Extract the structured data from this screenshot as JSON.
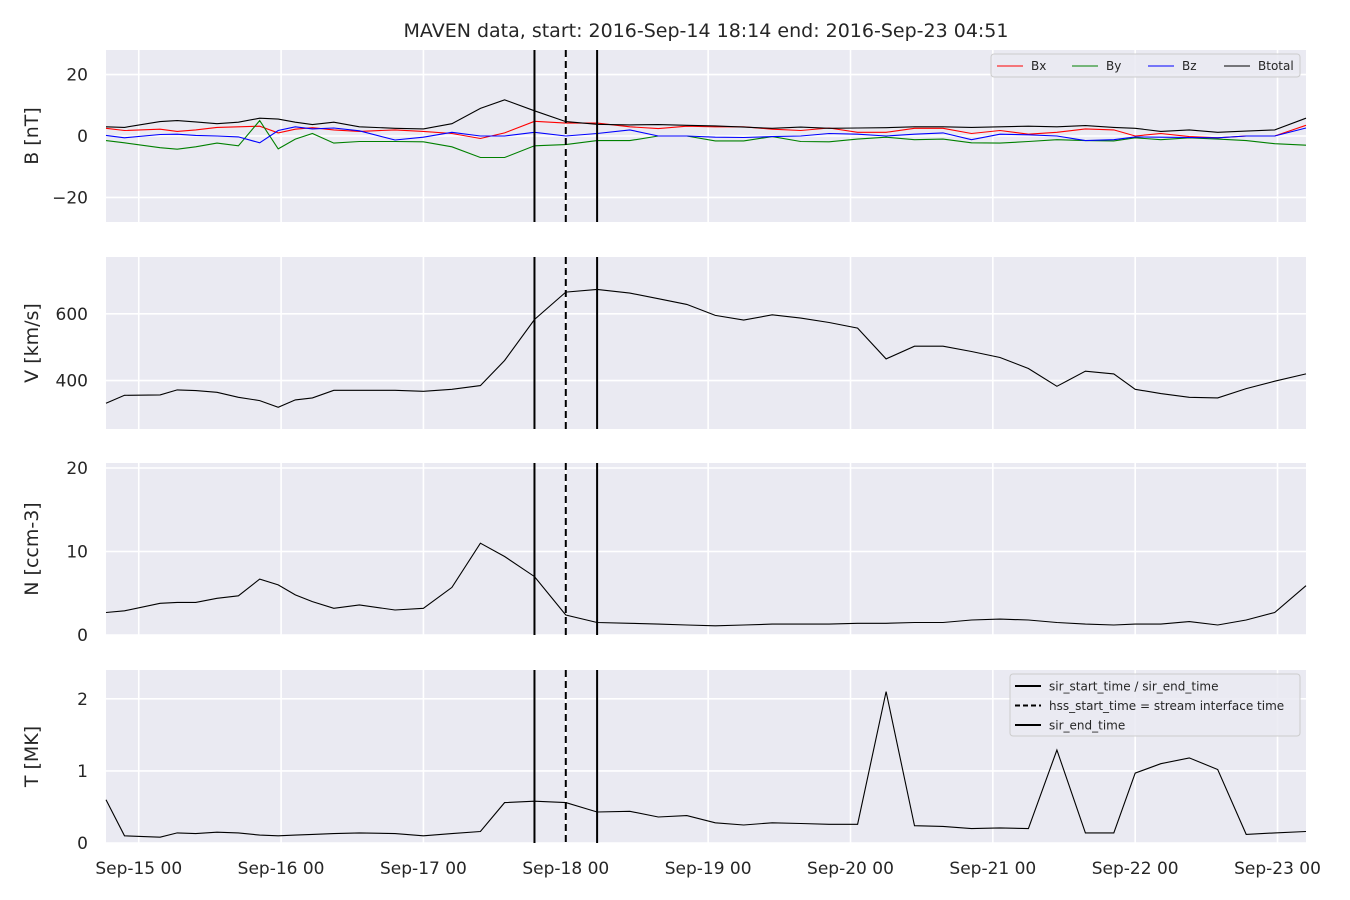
{
  "title": "MAVEN data, start: 2016-Sep-14 18:14  end: 2016-Sep-23 04:51",
  "colors": {
    "background": "#eaeaf2",
    "grid": "#ffffff",
    "Bx": "#ff0000",
    "By": "#008000",
    "Bz": "#0000ff",
    "Btotal": "#000000",
    "line": "#000000",
    "event": "#000000"
  },
  "chart_data": {
    "type": "line",
    "x_unit": "days since Sep-15 00:00",
    "x_range": [
      -0.23,
      8.2
    ],
    "x_ticks": [
      0,
      1,
      2,
      3,
      4,
      5,
      6,
      7,
      8
    ],
    "x_tick_labels": [
      "Sep-15 00",
      "Sep-16 00",
      "Sep-17 00",
      "Sep-18 00",
      "Sep-19 00",
      "Sep-20 00",
      "Sep-21 00",
      "Sep-22 00",
      "Sep-23 00"
    ],
    "event_lines": [
      {
        "x": 2.78,
        "style": "solid",
        "label": "sir_start_time / sir_end_time"
      },
      {
        "x": 3.0,
        "style": "dashed",
        "label": "hss_start_time = stream interface time"
      },
      {
        "x": 3.22,
        "style": "solid",
        "label": "sir_end_time"
      }
    ],
    "panels": [
      {
        "ylabel": "B [nT]",
        "ylim": [
          -28,
          28
        ],
        "yticks": [
          -20,
          0,
          20
        ],
        "ytick_labels": [
          "−20",
          "0",
          "20"
        ],
        "legend": "top-right",
        "series": [
          {
            "name": "Bx",
            "color_key": "Bx",
            "x": [
              -0.23,
              -0.1,
              0.15,
              0.27,
              0.4,
              0.55,
              0.7,
              0.85,
              0.98,
              1.1,
              1.22,
              1.37,
              1.55,
              1.8,
              2.0,
              2.2,
              2.4,
              2.57,
              2.78,
              3.0,
              3.22,
              3.45,
              3.65,
              3.85,
              4.05,
              4.25,
              4.45,
              4.65,
              4.85,
              5.05,
              5.25,
              5.45,
              5.65,
              5.85,
              6.05,
              6.25,
              6.45,
              6.65,
              6.85,
              7.0,
              7.18,
              7.38,
              7.58,
              7.78,
              7.98,
              8.2
            ],
            "values": [
              2.5,
              1.8,
              2.2,
              1.5,
              2.0,
              2.8,
              3.0,
              3.2,
              1.0,
              2.2,
              2.7,
              2.0,
              1.5,
              2.0,
              1.5,
              0.8,
              -0.8,
              1.0,
              4.8,
              4.2,
              4.2,
              3.0,
              2.4,
              3.2,
              3.0,
              3.0,
              2.2,
              1.8,
              2.6,
              1.2,
              1.2,
              2.5,
              2.5,
              0.8,
              1.8,
              0.6,
              1.2,
              2.3,
              2.0,
              0.0,
              0.8,
              -0.2,
              -0.6,
              0.0,
              0.0,
              3.5
            ]
          },
          {
            "name": "By",
            "color_key": "By",
            "x": [
              -0.23,
              -0.1,
              0.15,
              0.27,
              0.4,
              0.55,
              0.7,
              0.85,
              0.98,
              1.1,
              1.22,
              1.37,
              1.55,
              1.8,
              2.0,
              2.2,
              2.4,
              2.57,
              2.78,
              3.0,
              3.22,
              3.45,
              3.65,
              3.85,
              4.05,
              4.25,
              4.45,
              4.65,
              4.85,
              5.05,
              5.25,
              5.45,
              5.65,
              5.85,
              6.05,
              6.25,
              6.45,
              6.65,
              6.85,
              7.0,
              7.18,
              7.38,
              7.58,
              7.78,
              7.98,
              8.2
            ],
            "values": [
              -1.5,
              -2.2,
              -3.8,
              -4.3,
              -3.5,
              -2.3,
              -3.2,
              5.0,
              -4.2,
              -1.0,
              0.8,
              -2.3,
              -1.8,
              -1.8,
              -1.9,
              -3.5,
              -7.0,
              -7.0,
              -3.2,
              -2.8,
              -1.5,
              -1.5,
              0.0,
              0.0,
              -1.6,
              -1.6,
              -0.2,
              -1.8,
              -1.9,
              -1.0,
              -0.4,
              -1.2,
              -1.0,
              -2.2,
              -2.3,
              -1.8,
              -1.2,
              -1.5,
              -1.6,
              -0.6,
              -1.2,
              -0.6,
              -1.0,
              -1.5,
              -2.5,
              -3.0
            ]
          },
          {
            "name": "Bz",
            "color_key": "Bz",
            "x": [
              -0.23,
              -0.1,
              0.15,
              0.27,
              0.4,
              0.55,
              0.7,
              0.85,
              0.98,
              1.1,
              1.22,
              1.37,
              1.55,
              1.8,
              2.0,
              2.2,
              2.4,
              2.57,
              2.78,
              3.0,
              3.22,
              3.45,
              3.65,
              3.85,
              4.05,
              4.25,
              4.45,
              4.65,
              4.85,
              5.05,
              5.25,
              5.45,
              5.65,
              5.85,
              6.05,
              6.25,
              6.45,
              6.65,
              6.85,
              7.0,
              7.18,
              7.38,
              7.58,
              7.78,
              7.98,
              8.2
            ],
            "values": [
              0.2,
              -0.6,
              0.5,
              0.6,
              0.2,
              0.0,
              -0.3,
              -2.2,
              1.8,
              3.0,
              2.3,
              2.6,
              1.7,
              -1.3,
              -0.4,
              1.2,
              0.0,
              0.0,
              1.2,
              0.0,
              0.8,
              2.0,
              0.0,
              0.0,
              -0.4,
              -0.5,
              -0.2,
              0.0,
              0.8,
              0.6,
              0.0,
              0.6,
              1.0,
              -1.2,
              0.6,
              0.4,
              0.0,
              -1.5,
              -1.2,
              -0.3,
              -0.4,
              -0.5,
              -0.6,
              0.0,
              0.0,
              2.6
            ]
          },
          {
            "name": "Btotal",
            "color_key": "Btotal",
            "x": [
              -0.23,
              -0.1,
              0.15,
              0.27,
              0.4,
              0.55,
              0.7,
              0.85,
              0.98,
              1.1,
              1.22,
              1.37,
              1.55,
              1.8,
              2.0,
              2.2,
              2.4,
              2.57,
              2.78,
              3.0,
              3.22,
              3.45,
              3.65,
              3.85,
              4.05,
              4.25,
              4.45,
              4.65,
              4.85,
              5.05,
              5.25,
              5.45,
              5.65,
              5.85,
              6.05,
              6.25,
              6.45,
              6.65,
              6.85,
              7.0,
              7.18,
              7.38,
              7.58,
              7.78,
              7.98,
              8.2
            ],
            "values": [
              3.0,
              2.8,
              4.7,
              5.0,
              4.6,
              4.0,
              4.5,
              5.8,
              5.5,
              4.5,
              3.7,
              4.5,
              3.0,
              2.5,
              2.3,
              4.0,
              9.0,
              11.8,
              8.2,
              4.7,
              3.8,
              3.6,
              3.7,
              3.5,
              3.3,
              2.9,
              2.5,
              2.9,
              2.5,
              2.6,
              2.7,
              3.0,
              3.0,
              2.8,
              3.0,
              3.2,
              3.0,
              3.4,
              2.8,
              2.5,
              1.5,
              2.0,
              1.2,
              1.6,
              2.0,
              5.8
            ]
          }
        ]
      },
      {
        "ylabel": "V [km/s]",
        "ylim": [
          255,
          770
        ],
        "yticks": [
          400,
          600
        ],
        "ytick_labels": [
          "400",
          "600"
        ],
        "series": [
          {
            "name": "",
            "color_key": "line",
            "x": [
              -0.23,
              -0.1,
              0.15,
              0.27,
              0.4,
              0.55,
              0.7,
              0.85,
              0.98,
              1.1,
              1.22,
              1.37,
              1.55,
              1.8,
              2.0,
              2.2,
              2.4,
              2.57,
              2.78,
              3.0,
              3.22,
              3.45,
              3.65,
              3.85,
              4.05,
              4.25,
              4.45,
              4.65,
              4.85,
              5.05,
              5.25,
              5.45,
              5.65,
              5.85,
              6.05,
              6.25,
              6.45,
              6.65,
              6.85,
              7.0,
              7.18,
              7.38,
              7.58,
              7.78,
              7.98,
              8.2
            ],
            "values": [
              332,
              356,
              357,
              372,
              370,
              365,
              350,
              340,
              320,
              342,
              348,
              371,
              371,
              371,
              368,
              374,
              385,
              460,
              583,
              665,
              673,
              662,
              645,
              628,
              595,
              581,
              597,
              587,
              574,
              557,
              465,
              503,
              503,
              487,
              469,
              436,
              383,
              428,
              420,
              374,
              361,
              350,
              348,
              376,
              398,
              420
            ]
          }
        ]
      },
      {
        "ylabel": "N [ccm-3]",
        "ylim": [
          0,
          20.6
        ],
        "yticks": [
          0,
          10,
          20
        ],
        "ytick_labels": [
          "0",
          "10",
          "20"
        ],
        "series": [
          {
            "name": "",
            "color_key": "line",
            "x": [
              -0.23,
              -0.1,
              0.15,
              0.27,
              0.4,
              0.55,
              0.7,
              0.85,
              0.98,
              1.1,
              1.22,
              1.37,
              1.55,
              1.8,
              2.0,
              2.2,
              2.4,
              2.57,
              2.78,
              3.0,
              3.22,
              3.45,
              3.65,
              3.85,
              4.05,
              4.25,
              4.45,
              4.65,
              4.85,
              5.05,
              5.25,
              5.45,
              5.65,
              5.85,
              6.05,
              6.25,
              6.45,
              6.65,
              6.85,
              7.0,
              7.18,
              7.38,
              7.58,
              7.78,
              7.98,
              8.2
            ],
            "values": [
              2.7,
              2.9,
              3.8,
              3.9,
              3.9,
              4.4,
              4.7,
              6.7,
              6.0,
              4.8,
              4.0,
              3.2,
              3.6,
              3.0,
              3.2,
              5.7,
              11.0,
              9.4,
              7.0,
              2.4,
              1.5,
              1.4,
              1.3,
              1.2,
              1.1,
              1.2,
              1.3,
              1.3,
              1.3,
              1.4,
              1.4,
              1.5,
              1.5,
              1.8,
              1.9,
              1.8,
              1.5,
              1.3,
              1.2,
              1.3,
              1.3,
              1.6,
              1.2,
              1.8,
              2.7,
              5.9
            ]
          }
        ]
      },
      {
        "ylabel": "T [MK]",
        "ylim": [
          0,
          2.4
        ],
        "yticks": [
          0,
          1,
          2
        ],
        "ytick_labels": [
          "0",
          "1",
          "2"
        ],
        "legend": "top-right",
        "series": [
          {
            "name": "",
            "color_key": "line",
            "x": [
              -0.23,
              -0.1,
              0.15,
              0.27,
              0.4,
              0.55,
              0.7,
              0.85,
              0.98,
              1.1,
              1.22,
              1.37,
              1.55,
              1.8,
              2.0,
              2.2,
              2.4,
              2.57,
              2.78,
              3.0,
              3.22,
              3.45,
              3.65,
              3.85,
              4.05,
              4.25,
              4.45,
              4.65,
              4.85,
              5.05,
              5.25,
              5.45,
              5.65,
              5.85,
              6.05,
              6.25,
              6.45,
              6.65,
              6.85,
              7.0,
              7.18,
              7.38,
              7.58,
              7.78,
              7.98,
              8.2
            ],
            "values": [
              0.6,
              0.1,
              0.08,
              0.14,
              0.13,
              0.15,
              0.14,
              0.11,
              0.1,
              0.11,
              0.12,
              0.13,
              0.14,
              0.13,
              0.1,
              0.13,
              0.16,
              0.56,
              0.58,
              0.56,
              0.43,
              0.44,
              0.36,
              0.38,
              0.28,
              0.25,
              0.28,
              0.27,
              0.26,
              0.26,
              2.1,
              0.24,
              0.23,
              0.2,
              0.21,
              0.2,
              1.29,
              0.14,
              0.14,
              0.97,
              1.1,
              1.18,
              1.02,
              0.12,
              0.14,
              0.16
            ]
          }
        ]
      }
    ]
  }
}
